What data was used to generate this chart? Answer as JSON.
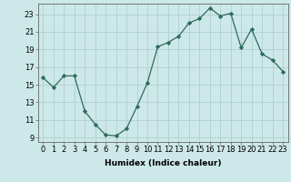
{
  "x": [
    0,
    1,
    2,
    3,
    4,
    5,
    6,
    7,
    8,
    9,
    10,
    11,
    12,
    13,
    14,
    15,
    16,
    17,
    18,
    19,
    20,
    21,
    22,
    23
  ],
  "y": [
    15.8,
    14.7,
    16.0,
    16.0,
    12.0,
    10.5,
    9.3,
    9.2,
    10.0,
    12.5,
    15.2,
    19.3,
    19.8,
    20.5,
    22.0,
    22.5,
    23.7,
    22.8,
    23.1,
    19.2,
    21.3,
    18.5,
    17.8,
    16.5
  ],
  "line_color": "#2d6b5e",
  "marker": "D",
  "marker_size": 2.2,
  "bg_color": "#cde8e8",
  "grid_color": "#b0d0d0",
  "xlabel": "Humidex (Indice chaleur)",
  "ylim": [
    8.5,
    24.2
  ],
  "xlim": [
    -0.5,
    23.5
  ],
  "yticks": [
    9,
    11,
    13,
    15,
    17,
    19,
    21,
    23
  ],
  "xticks": [
    0,
    1,
    2,
    3,
    4,
    5,
    6,
    7,
    8,
    9,
    10,
    11,
    12,
    13,
    14,
    15,
    16,
    17,
    18,
    19,
    20,
    21,
    22,
    23
  ],
  "label_fontsize": 6.5,
  "tick_fontsize": 6.0
}
